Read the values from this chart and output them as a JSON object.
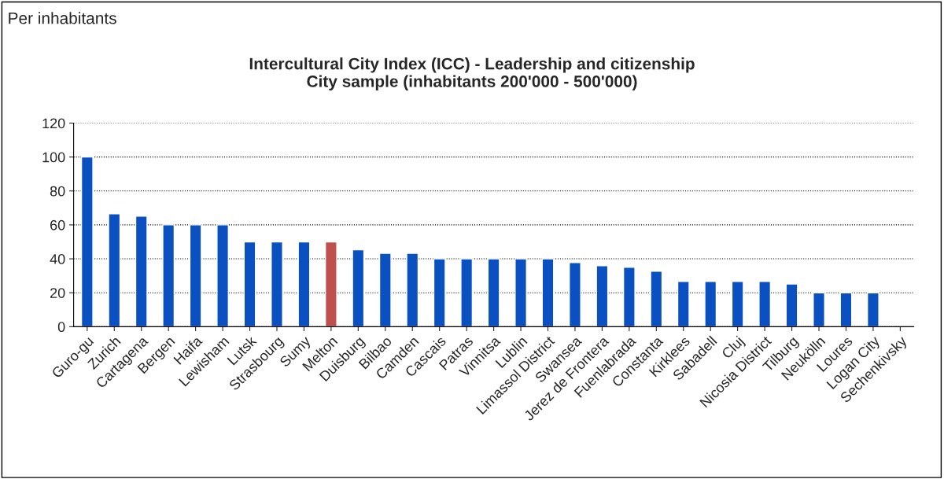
{
  "chart_data": {
    "type": "bar",
    "title": "Intercultural City Index (ICC) - Leadership and citizenship\nCity sample (inhabitants 200'000 - 500'000)",
    "annotations": [
      "Per inhabitants"
    ],
    "categories": [
      "Guro-gu",
      "Zurich",
      "Cartagena",
      "Bergen",
      "Haifa",
      "Lewisham",
      "Lutsk",
      "Strasbourg",
      "Sumy",
      "Melton",
      "Duisburg",
      "Bilbao",
      "Camden",
      "Cascais",
      "Patras",
      "Vinnitsa",
      "Lublin",
      "Limassol District",
      "Swansea",
      "Jerez de Frontera",
      "Fuenlabrada",
      "Constanta",
      "Kirklees",
      "Sabadell",
      "Cluj",
      "Nicosia District",
      "Tilburg",
      "Neukölln",
      "Loures",
      "Logan City",
      "Sechenkivsky"
    ],
    "values": [
      100,
      66.6,
      65.2,
      60,
      60,
      60,
      50,
      50,
      50,
      50,
      45.3,
      43.3,
      43.3,
      40,
      40,
      40,
      40,
      40,
      37.8,
      36,
      35,
      32.7,
      26.7,
      26.7,
      26.7,
      26.7,
      25.2,
      20,
      20,
      20,
      null
    ],
    "colors": [
      "#0a50c0",
      "#0a50c0",
      "#0a50c0",
      "#0a50c0",
      "#0a50c0",
      "#0a50c0",
      "#0a50c0",
      "#0a50c0",
      "#0a50c0",
      "#c0504d",
      "#0a50c0",
      "#0a50c0",
      "#0a50c0",
      "#0a50c0",
      "#0a50c0",
      "#0a50c0",
      "#0a50c0",
      "#0a50c0",
      "#0a50c0",
      "#0a50c0",
      "#0a50c0",
      "#0a50c0",
      "#0a50c0",
      "#0a50c0",
      "#0a50c0",
      "#0a50c0",
      "#0a50c0",
      "#0a50c0",
      "#0a50c0",
      "#0a50c0",
      "#0a50c0"
    ],
    "ylim": [
      0,
      120
    ],
    "yticks": [
      0,
      20,
      40,
      60,
      80,
      100,
      120
    ],
    "grid": "y"
  }
}
